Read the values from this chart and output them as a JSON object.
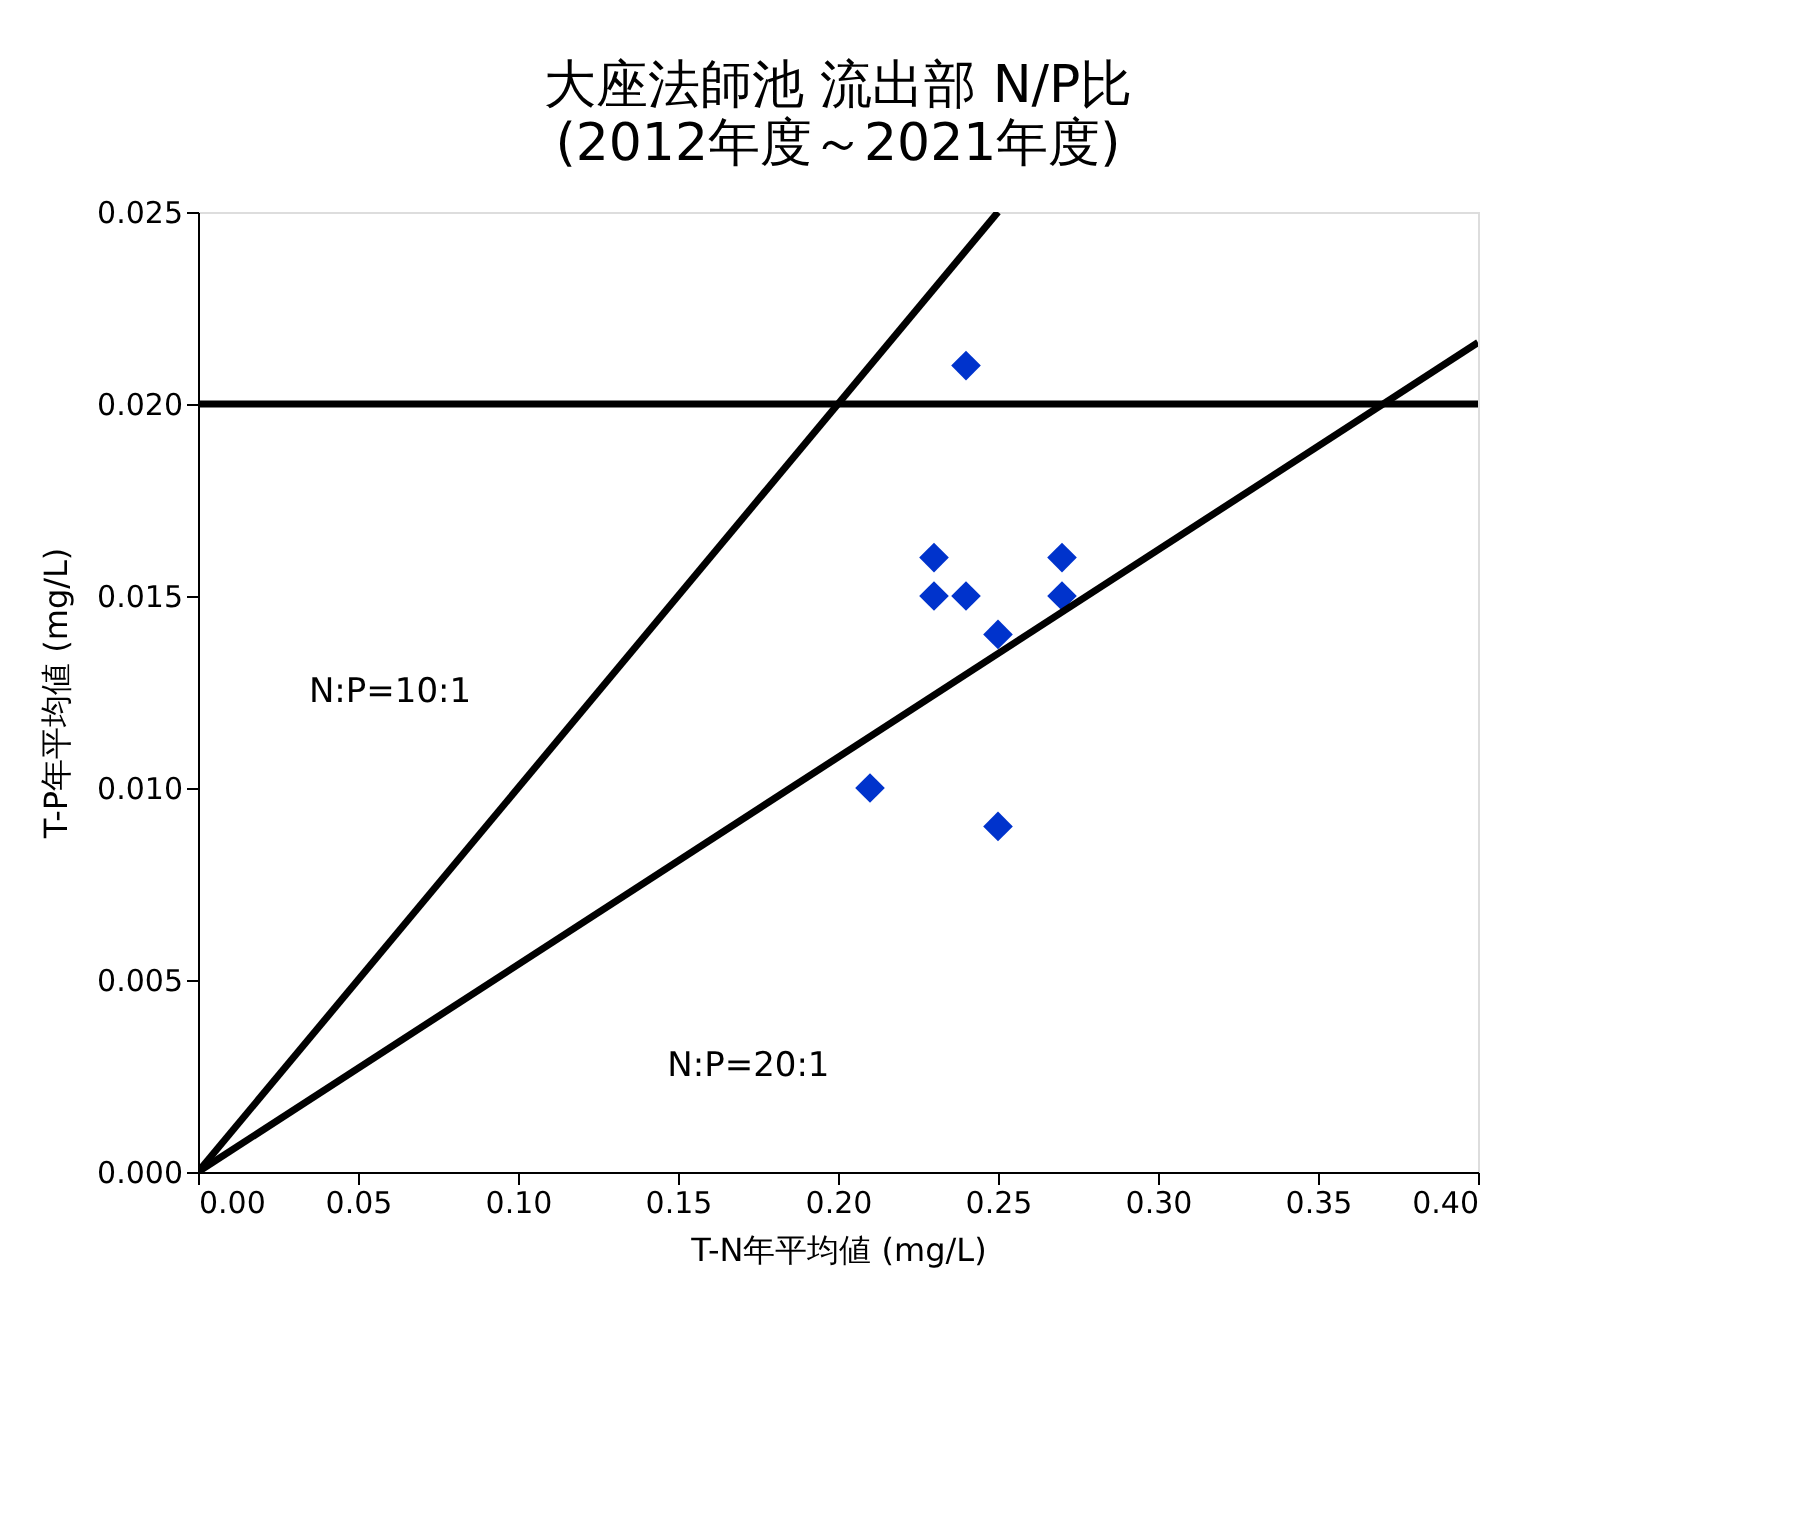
{
  "chart_data": {
    "type": "scatter",
    "title": "大座法師池 流出部 N/P比",
    "subtitle": "(2012年度～2021年度)",
    "xlabel": "T-N年平均値 (mg/L)",
    "ylabel": "T-P年平均値 (mg/L)",
    "xlim": [
      0,
      0.4
    ],
    "ylim": [
      0,
      0.025
    ],
    "xticks": [
      {
        "value": 0,
        "label": "0.00"
      },
      {
        "value": 0.05,
        "label": "0.05"
      },
      {
        "value": 0.1,
        "label": "0.10"
      },
      {
        "value": 0.15,
        "label": "0.15"
      },
      {
        "value": 0.2,
        "label": "0.20"
      },
      {
        "value": 0.25,
        "label": "0.25"
      },
      {
        "value": 0.3,
        "label": "0.30"
      },
      {
        "value": 0.35,
        "label": "0.35"
      },
      {
        "value": 0.4,
        "label": "0.40"
      }
    ],
    "yticks": [
      {
        "value": 0,
        "label": "0.000"
      },
      {
        "value": 0.005,
        "label": "0.005"
      },
      {
        "value": 0.01,
        "label": "0.010"
      },
      {
        "value": 0.015,
        "label": "0.015"
      },
      {
        "value": 0.02,
        "label": "0.020"
      },
      {
        "value": 0.025,
        "label": "0.025"
      }
    ],
    "grid": false,
    "series": [
      {
        "marker": "diamond",
        "color": "#0033cc",
        "x": [
          0.24,
          0.23,
          0.27,
          0.23,
          0.24,
          0.27,
          0.25,
          0.21,
          0.25
        ],
        "values": [
          0.021,
          0.016,
          0.016,
          0.015,
          0.015,
          0.015,
          0.014,
          0.01,
          0.009
        ]
      },
      {
        "type": "line",
        "color": "#000000",
        "x": [
          0,
          0.25
        ],
        "values": [
          0,
          0.025
        ]
      },
      {
        "type": "line",
        "color": "#000000",
        "x": [
          0,
          0.4
        ],
        "values": [
          0,
          0.0216
        ]
      }
    ],
    "ref_lines": [
      {
        "axis": "y",
        "value": 0.02,
        "color": "#000000"
      }
    ],
    "annotations": [
      "N:P=10:1",
      "N:P=20:1"
    ]
  }
}
